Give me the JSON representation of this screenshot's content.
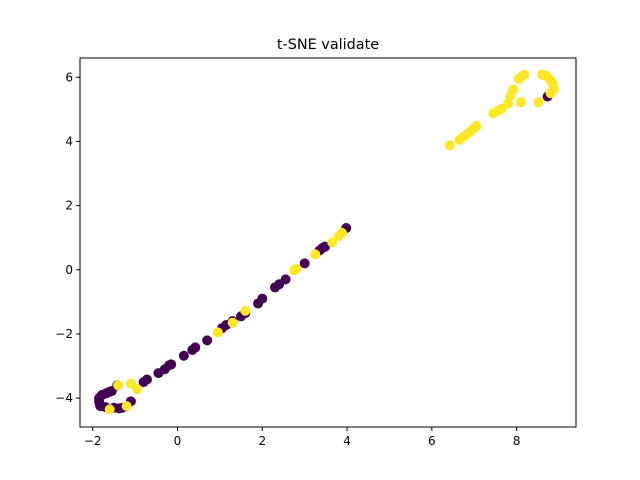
{
  "chart_data": {
    "type": "scatter",
    "title": "t-SNE validate",
    "xlabel": "",
    "ylabel": "",
    "xlim": [
      -2.3,
      9.4
    ],
    "ylim": [
      -4.9,
      6.6
    ],
    "x_ticks": [
      -2,
      0,
      2,
      4,
      6,
      8
    ],
    "x_tick_labels": [
      "−2",
      "0",
      "2",
      "4",
      "6",
      "8"
    ],
    "y_ticks": [
      -4,
      -2,
      0,
      2,
      4,
      6
    ],
    "y_tick_labels": [
      "−4",
      "−2",
      "0",
      "2",
      "4",
      "6"
    ],
    "grid": false,
    "legend": "none",
    "series": [
      {
        "color": "#440154",
        "points": [
          [
            -1.85,
            -4.0
          ],
          [
            -1.85,
            -4.1
          ],
          [
            -1.83,
            -4.2
          ],
          [
            -1.82,
            -4.25
          ],
          [
            -1.78,
            -3.9
          ],
          [
            -1.7,
            -4.28
          ],
          [
            -1.68,
            -3.85
          ],
          [
            -1.6,
            -3.8
          ],
          [
            -1.55,
            -3.78
          ],
          [
            -1.5,
            -4.3
          ],
          [
            -1.42,
            -3.6
          ],
          [
            -1.38,
            -4.32
          ],
          [
            -1.3,
            -4.3
          ],
          [
            -1.1,
            -4.1
          ],
          [
            -0.8,
            -3.5
          ],
          [
            -0.72,
            -3.42
          ],
          [
            -0.45,
            -3.22
          ],
          [
            -0.3,
            -3.1
          ],
          [
            -0.2,
            -2.98
          ],
          [
            -0.15,
            -2.95
          ],
          [
            0.15,
            -2.68
          ],
          [
            0.35,
            -2.5
          ],
          [
            0.42,
            -2.42
          ],
          [
            0.7,
            -2.2
          ],
          [
            1.05,
            -1.82
          ],
          [
            1.15,
            -1.72
          ],
          [
            1.3,
            -1.6
          ],
          [
            1.5,
            -1.45
          ],
          [
            1.6,
            -1.35
          ],
          [
            1.9,
            -1.05
          ],
          [
            2.0,
            -0.9
          ],
          [
            2.3,
            -0.55
          ],
          [
            2.4,
            -0.45
          ],
          [
            2.55,
            -0.3
          ],
          [
            3.0,
            0.2
          ],
          [
            3.35,
            0.6
          ],
          [
            3.42,
            0.68
          ],
          [
            3.48,
            0.72
          ],
          [
            3.98,
            1.3
          ],
          [
            8.73,
            5.4
          ]
        ]
      },
      {
        "color": "#fde725",
        "points": [
          [
            -1.6,
            -4.35
          ],
          [
            -1.4,
            -3.6
          ],
          [
            -1.2,
            -4.25
          ],
          [
            -1.1,
            -3.55
          ],
          [
            -0.95,
            -3.72
          ],
          [
            0.95,
            -1.95
          ],
          [
            1.3,
            -1.65
          ],
          [
            1.6,
            -1.28
          ],
          [
            2.75,
            -0.02
          ],
          [
            2.8,
            0.02
          ],
          [
            3.25,
            0.48
          ],
          [
            3.65,
            0.85
          ],
          [
            3.8,
            1.05
          ],
          [
            3.88,
            1.15
          ],
          [
            6.42,
            3.88
          ],
          [
            6.65,
            4.05
          ],
          [
            6.75,
            4.15
          ],
          [
            6.82,
            4.22
          ],
          [
            6.9,
            4.3
          ],
          [
            6.98,
            4.4
          ],
          [
            7.05,
            4.48
          ],
          [
            7.45,
            4.88
          ],
          [
            7.55,
            4.95
          ],
          [
            7.65,
            5.02
          ],
          [
            7.8,
            5.18
          ],
          [
            7.85,
            5.42
          ],
          [
            7.92,
            5.62
          ],
          [
            8.05,
            5.95
          ],
          [
            8.12,
            6.02
          ],
          [
            8.18,
            6.08
          ],
          [
            8.1,
            5.22
          ],
          [
            8.52,
            5.22
          ],
          [
            8.6,
            6.08
          ],
          [
            8.68,
            6.05
          ],
          [
            8.72,
            6.02
          ],
          [
            8.8,
            5.9
          ],
          [
            8.85,
            5.8
          ],
          [
            8.88,
            5.62
          ],
          [
            8.8,
            5.5
          ]
        ]
      }
    ]
  }
}
